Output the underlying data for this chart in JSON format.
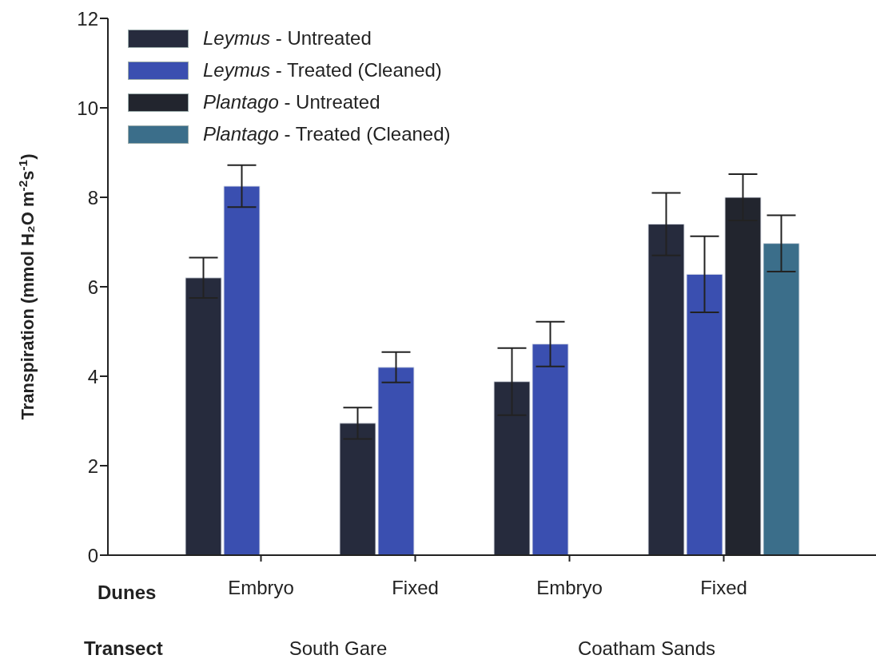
{
  "chart_data": {
    "type": "bar",
    "ylabel": "Transpiration (mmol H₂O m$^{-2}$s$^{-1}$)",
    "categories": [
      "Embryo",
      "Fixed",
      "Embryo",
      "Fixed"
    ],
    "series": [
      {
        "name": "Leymus - Untreated",
        "color": "#262b3d",
        "values": [
          6.2,
          2.95,
          3.88,
          7.4
        ],
        "errors": [
          0.45,
          0.35,
          0.75,
          0.7
        ]
      },
      {
        "name": "Leymus - Treated (Cleaned)",
        "color": "#3a4fb0",
        "values": [
          8.25,
          4.2,
          4.72,
          6.28
        ],
        "errors": [
          0.47,
          0.34,
          0.5,
          0.85
        ]
      },
      {
        "name": "Plantago - Untreated",
        "color": "#22252e",
        "values": [
          null,
          null,
          null,
          8.0
        ],
        "errors": [
          null,
          null,
          null,
          0.52
        ]
      },
      {
        "name": "Plantago - Treated (Cleaned)",
        "color": "#3b6e8a",
        "values": [
          null,
          null,
          null,
          6.97
        ],
        "errors": [
          null,
          null,
          null,
          0.63
        ]
      }
    ],
    "ylim": [
      0,
      12
    ],
    "yticks": [
      0,
      2,
      4,
      6,
      8,
      10,
      12
    ],
    "legend": "top left",
    "annotations": [
      "Dunes",
      "Transect",
      "South Gare",
      "Coatham Sands"
    ]
  }
}
